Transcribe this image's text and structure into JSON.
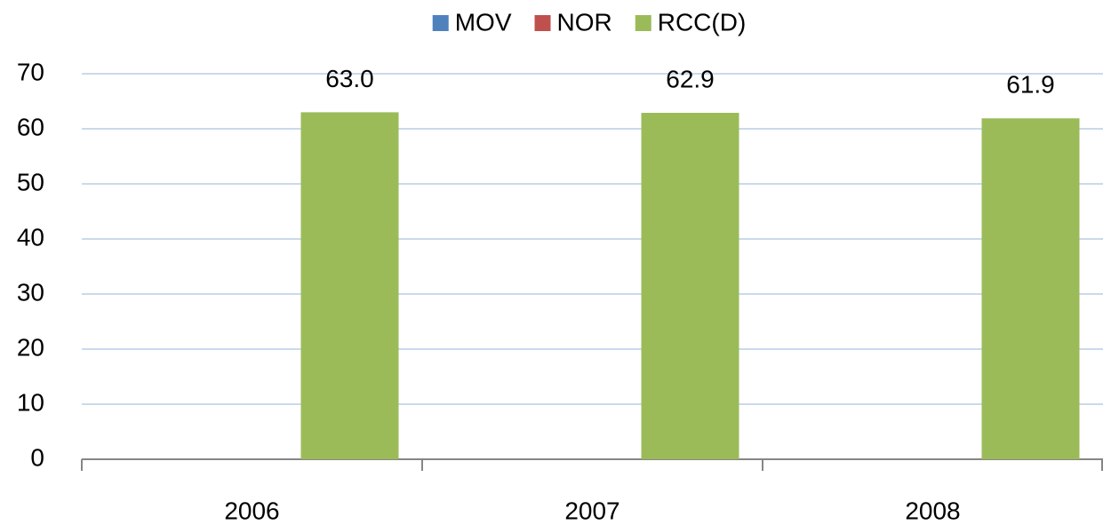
{
  "chart_data": {
    "type": "bar",
    "categories": [
      "2006",
      "2007",
      "2008"
    ],
    "series": [
      {
        "name": "MOV",
        "color": "#4f81bd",
        "values": [
          null,
          null,
          null
        ]
      },
      {
        "name": "NOR",
        "color": "#c0504d",
        "values": [
          null,
          null,
          null
        ]
      },
      {
        "name": "RCC(D)",
        "color": "#9bbb59",
        "values": [
          63.0,
          62.9,
          61.9
        ],
        "value_labels": [
          "63.0",
          "62.9",
          "61.9"
        ]
      }
    ],
    "ylim": [
      0,
      70
    ],
    "yticks": [
      0,
      10,
      20,
      30,
      40,
      50,
      60,
      70
    ],
    "grid": true,
    "legend": "top"
  }
}
